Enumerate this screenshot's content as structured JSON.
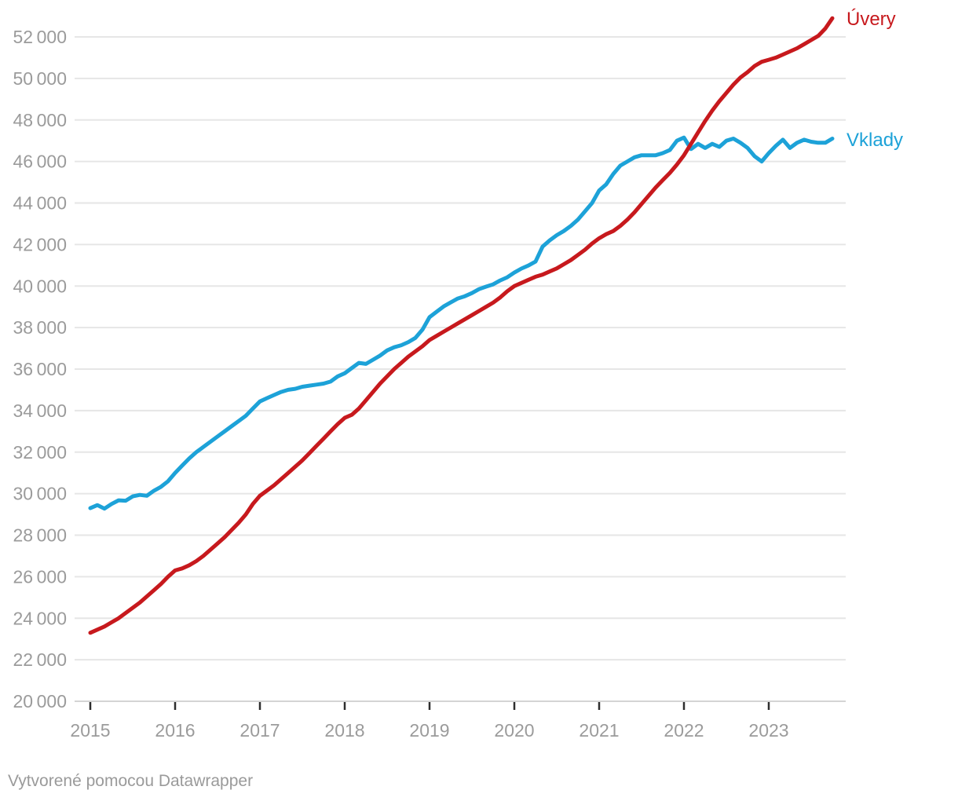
{
  "chart_data": {
    "type": "line",
    "title": "",
    "x_unit": "month",
    "start": "2015-01",
    "end": "2023-10",
    "freq": "monthly",
    "xlabel": "",
    "ylabel": "",
    "ylim": [
      20000,
      53200
    ],
    "grid": "horizontal",
    "legend_position": "right-of-line-ends",
    "xticks": [
      "2015",
      "2016",
      "2017",
      "2018",
      "2019",
      "2020",
      "2021",
      "2022",
      "2023"
    ],
    "yticks": [
      20000,
      22000,
      24000,
      26000,
      28000,
      30000,
      32000,
      34000,
      36000,
      38000,
      40000,
      42000,
      44000,
      46000,
      48000,
      50000,
      52000
    ],
    "series": [
      {
        "name": "Úvery",
        "color": "#c7191d",
        "values": [
          23300,
          23450,
          23600,
          23800,
          24000,
          24250,
          24500,
          24750,
          25050,
          25350,
          25650,
          26000,
          26300,
          26400,
          26550,
          26750,
          27000,
          27300,
          27600,
          27900,
          28250,
          28600,
          29000,
          29500,
          29900,
          30150,
          30400,
          30700,
          31000,
          31300,
          31600,
          31950,
          32300,
          32650,
          33000,
          33350,
          33650,
          33800,
          34100,
          34500,
          34900,
          35300,
          35650,
          36000,
          36300,
          36600,
          36850,
          37100,
          37400,
          37600,
          37800,
          38000,
          38200,
          38400,
          38600,
          38800,
          39000,
          39200,
          39450,
          39750,
          40000,
          40150,
          40300,
          40450,
          40550,
          40700,
          40850,
          41050,
          41250,
          41500,
          41750,
          42050,
          42300,
          42500,
          42650,
          42900,
          43200,
          43550,
          43950,
          44350,
          44750,
          45100,
          45450,
          45850,
          46300,
          46850,
          47400,
          47950,
          48450,
          48900,
          49300,
          49700,
          50050,
          50300,
          50600,
          50800,
          50900,
          51000,
          51150,
          51300,
          51450,
          51650,
          51850,
          52050,
          52400,
          52900
        ]
      },
      {
        "name": "Vklady",
        "color": "#1da2d8",
        "values": [
          29300,
          29450,
          29280,
          29500,
          29680,
          29660,
          29870,
          29940,
          29900,
          30140,
          30330,
          30600,
          31000,
          31350,
          31700,
          32000,
          32250,
          32500,
          32750,
          33000,
          33250,
          33500,
          33750,
          34100,
          34440,
          34600,
          34750,
          34900,
          35000,
          35050,
          35150,
          35200,
          35250,
          35300,
          35400,
          35650,
          35800,
          36050,
          36300,
          36250,
          36450,
          36650,
          36900,
          37050,
          37150,
          37300,
          37500,
          37900,
          38500,
          38760,
          39020,
          39210,
          39400,
          39510,
          39660,
          39850,
          39970,
          40080,
          40270,
          40420,
          40650,
          40840,
          40990,
          41180,
          41900,
          42200,
          42450,
          42650,
          42900,
          43200,
          43600,
          44000,
          44600,
          44900,
          45400,
          45800,
          46000,
          46200,
          46300,
          46300,
          46300,
          46400,
          46550,
          47000,
          47150,
          46600,
          46850,
          46650,
          46850,
          46700,
          47000,
          47100,
          46900,
          46650,
          46250,
          46000,
          46400,
          46750,
          47050,
          46650,
          46900,
          47050,
          46950,
          46900,
          46900,
          47100
        ]
      }
    ],
    "theme": {
      "grid_color": "#e6e6e6",
      "baseline_color": "#d4d4d4",
      "axis_text_color": "#9b9b9b",
      "tick_mark_color": "#2e2e2e",
      "background": "#ffffff"
    }
  },
  "footer": {
    "text": "Vytvorené pomocou Datawrapper"
  }
}
